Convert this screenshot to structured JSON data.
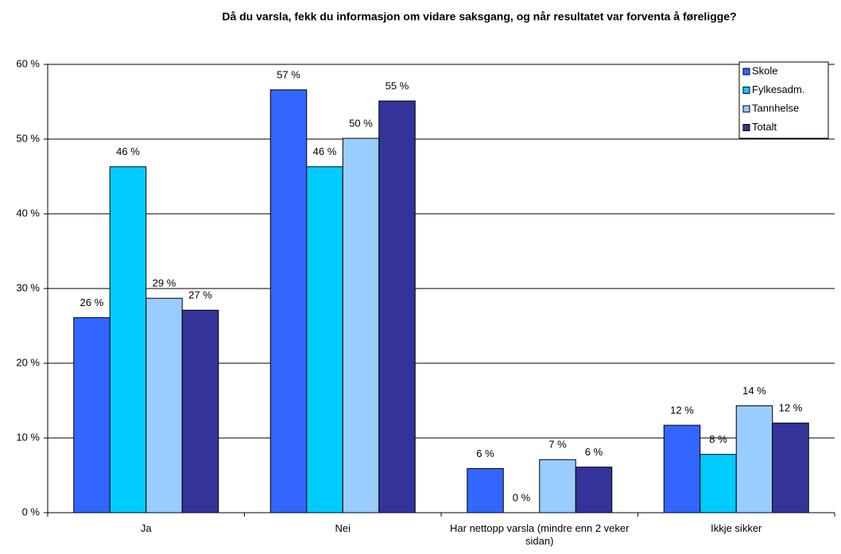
{
  "chart_data": {
    "type": "bar",
    "title": "Då du varsla, fekk du informasjon om vidare saksgang, og når resultatet var forventa å føreligge?",
    "categories": [
      "Ja",
      "Nei",
      "Har nettopp varsla (mindre enn 2 veker sidan)",
      "Ikkje sikker"
    ],
    "series": [
      {
        "name": "Skole",
        "color": "#3366ff",
        "values": [
          26.1,
          56.6,
          5.9,
          11.7
        ],
        "value_labels": [
          "26 %",
          "57 %",
          "6 %",
          "12 %"
        ]
      },
      {
        "name": "Fylkesadm.",
        "color": "#00ccff",
        "values": [
          46.3,
          46.3,
          0,
          7.8
        ],
        "value_labels": [
          "46 %",
          "46 %",
          "0 %",
          "8 %"
        ]
      },
      {
        "name": "Tannhelse",
        "color": "#99ccff",
        "values": [
          28.7,
          50.1,
          7.1,
          14.3
        ],
        "value_labels": [
          "29 %",
          "50 %",
          "7 %",
          "14 %"
        ]
      },
      {
        "name": "Totalt",
        "color": "#333399",
        "values": [
          27.1,
          55.1,
          6.1,
          12.0
        ],
        "value_labels": [
          "27 %",
          "55 %",
          "6 %",
          "12 %"
        ]
      }
    ],
    "ylim": [
      0,
      60
    ],
    "yticks": [
      {
        "value": 0,
        "label": "0 %"
      },
      {
        "value": 10,
        "label": "10 %"
      },
      {
        "value": 20,
        "label": "20 %"
      },
      {
        "value": 30,
        "label": "30 %"
      },
      {
        "value": 40,
        "label": "40 %"
      },
      {
        "value": 50,
        "label": "50 %"
      },
      {
        "value": 60,
        "label": "60 %"
      }
    ],
    "grid": true,
    "legend": "top-right"
  }
}
